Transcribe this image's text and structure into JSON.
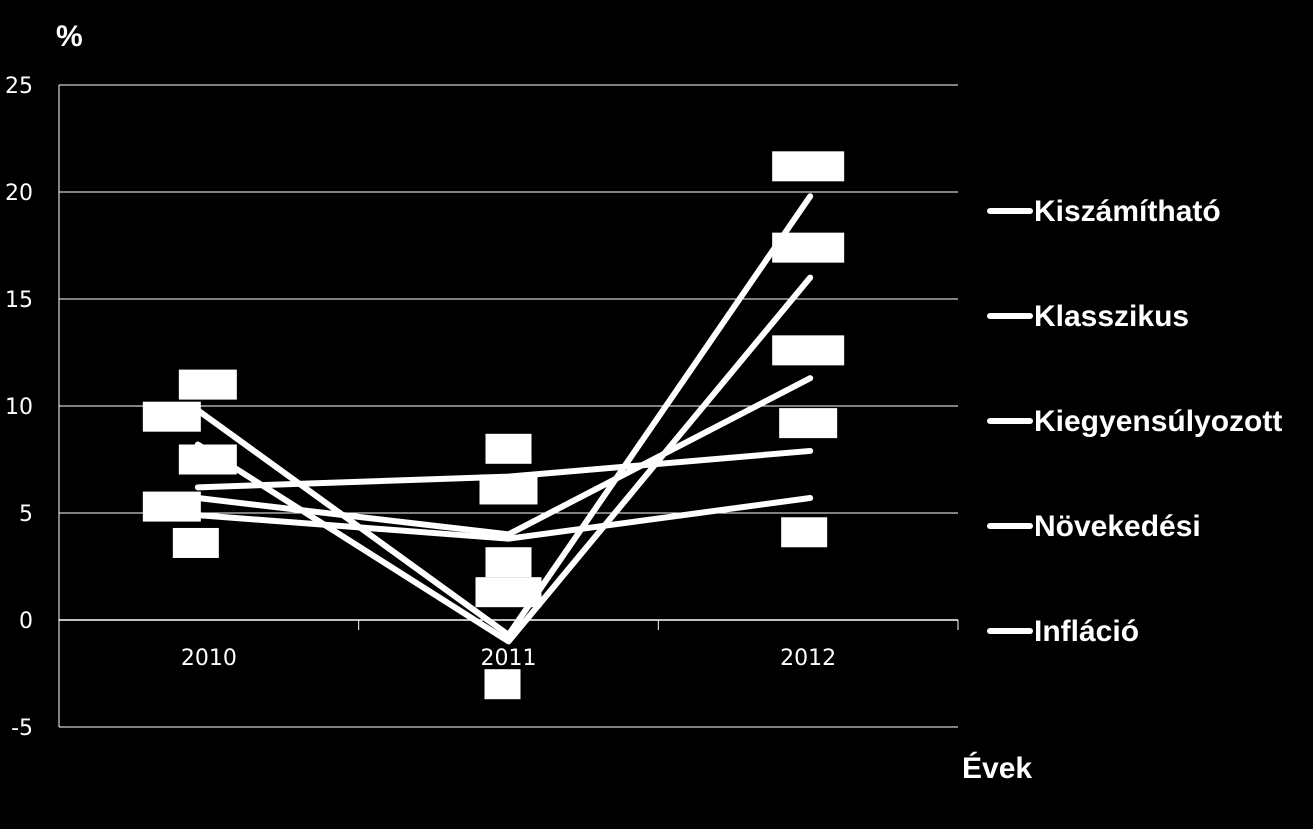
{
  "chart_data": {
    "type": "line",
    "ylabel": "%",
    "xlabel": "Évek",
    "categories": [
      "2010",
      "2011",
      "2012"
    ],
    "ylim": [
      -5,
      25
    ],
    "yticks": [
      -5,
      0,
      5,
      10,
      15,
      20,
      25
    ],
    "grid": true,
    "legend_position": "right",
    "series": [
      {
        "name": "Kiszámítható",
        "values": [
          9.8,
          -0.7,
          19.8
        ]
      },
      {
        "name": "Klasszikus",
        "values": [
          8.2,
          -1.0,
          16.0
        ]
      },
      {
        "name": "Kiegyensúlyozott",
        "values": [
          5.7,
          4.0,
          11.3
        ]
      },
      {
        "name": "Növekedési",
        "values": [
          4.9,
          3.8,
          5.7
        ]
      },
      {
        "name": "Infláció",
        "values": [
          6.2,
          6.7,
          7.9
        ]
      }
    ],
    "line_color": "#ffffff",
    "background": "#000000"
  }
}
